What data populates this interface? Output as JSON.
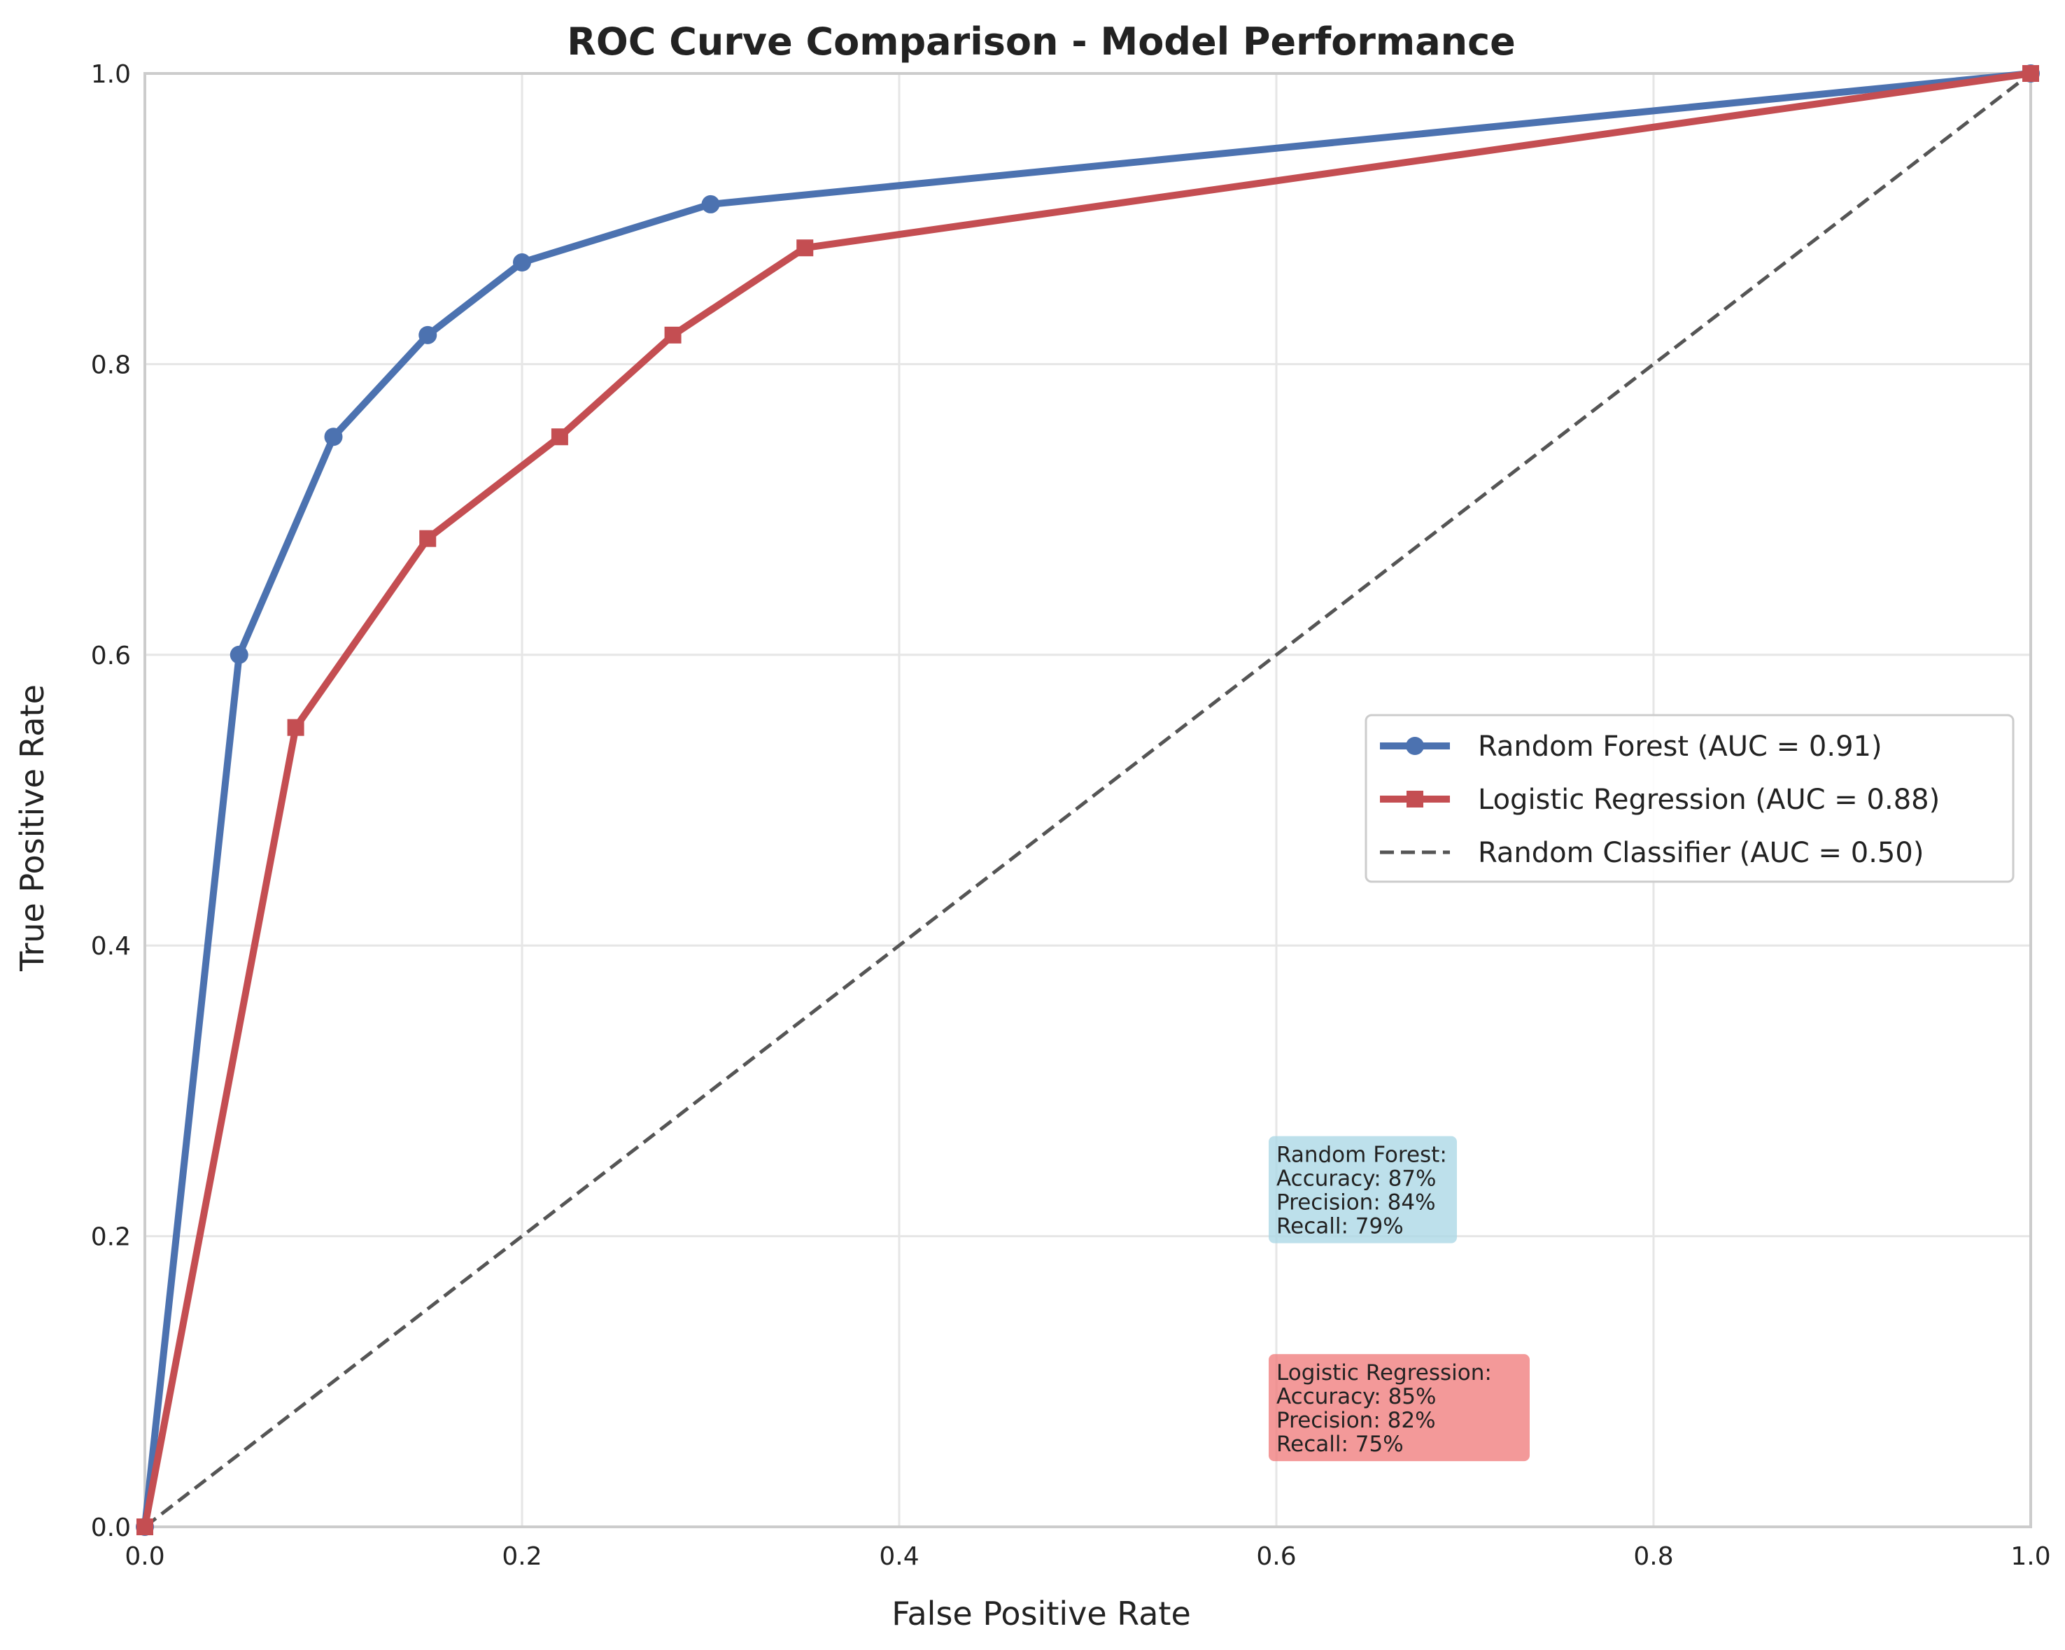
{
  "chart_data": {
    "type": "line",
    "title": "ROC Curve Comparison - Model Performance",
    "xlabel": "False Positive Rate",
    "ylabel": "True Positive Rate",
    "xlim": [
      0,
      1
    ],
    "ylim": [
      0,
      1
    ],
    "xticks": [
      0.0,
      0.2,
      0.4,
      0.6,
      0.8,
      1.0
    ],
    "yticks": [
      0.0,
      0.2,
      0.4,
      0.6,
      0.8,
      1.0
    ],
    "xtick_labels": [
      "0.0",
      "0.2",
      "0.4",
      "0.6",
      "0.8",
      "1.0"
    ],
    "ytick_labels": [
      "0.0",
      "0.2",
      "0.4",
      "0.6",
      "0.8",
      "1.0"
    ],
    "grid": true,
    "legend_position": "center-right",
    "series": [
      {
        "name": "Random Forest (AUC = 0.91)",
        "color": "#4c72b0",
        "marker": "circle",
        "line_style": "solid",
        "x": [
          0.0,
          0.05,
          0.1,
          0.15,
          0.2,
          0.3,
          1.0
        ],
        "y": [
          0.0,
          0.6,
          0.75,
          0.82,
          0.87,
          0.91,
          1.0
        ]
      },
      {
        "name": "Logistic Regression (AUC = 0.88)",
        "color": "#c44e52",
        "marker": "square",
        "line_style": "solid",
        "x": [
          0.0,
          0.08,
          0.15,
          0.22,
          0.28,
          0.35,
          1.0
        ],
        "y": [
          0.0,
          0.55,
          0.68,
          0.75,
          0.82,
          0.88,
          1.0
        ]
      },
      {
        "name": "Random Classifier (AUC = 0.50)",
        "color": "#555555",
        "marker": "none",
        "line_style": "dashed",
        "x": [
          0.0,
          1.0
        ],
        "y": [
          0.0,
          1.0
        ]
      }
    ],
    "annotations": [
      {
        "x": 0.6,
        "y": 0.2,
        "background": "#add8e6",
        "lines": [
          "Random Forest:",
          "Accuracy: 87%",
          "Precision: 84%",
          "Recall: 79%"
        ]
      },
      {
        "x": 0.6,
        "y": 0.05,
        "background": "#f08080",
        "lines": [
          "Logistic Regression:",
          "Accuracy: 85%",
          "Precision: 82%",
          "Recall: 75%"
        ]
      }
    ]
  }
}
